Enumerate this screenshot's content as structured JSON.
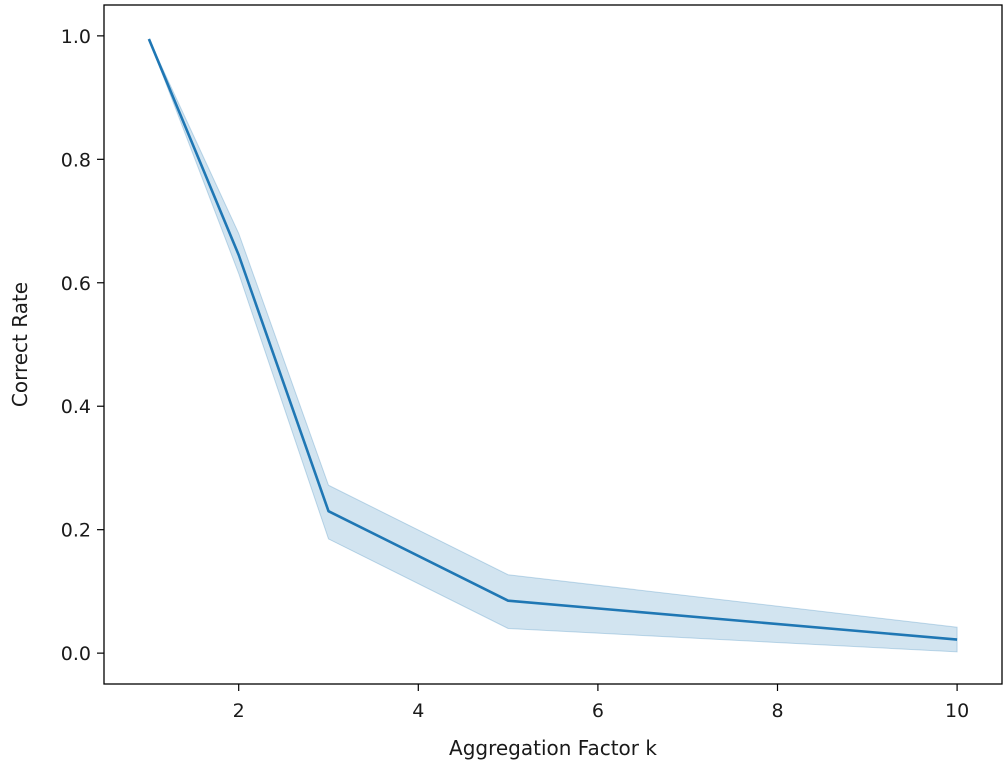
{
  "chart_data": {
    "type": "line",
    "title": "",
    "xlabel": "Aggregation Factor k",
    "ylabel": "Correct Rate",
    "xlim": [
      0.5,
      10.5
    ],
    "ylim": [
      -0.05,
      1.05
    ],
    "xticks": [
      2,
      4,
      6,
      8,
      10
    ],
    "yticks": [
      0.0,
      0.2,
      0.4,
      0.6,
      0.8,
      1.0
    ],
    "ytick_labels": [
      "0.0",
      "0.2",
      "0.4",
      "0.6",
      "0.8",
      "1.0"
    ],
    "grid": false,
    "legend": "none",
    "line_color": "#1f77b4",
    "band_color": "#1f77b4",
    "band_opacity": 0.2,
    "series": [
      {
        "x": [
          1,
          2,
          3,
          5,
          10
        ],
        "values": [
          0.995,
          0.645,
          0.23,
          0.085,
          0.022
        ],
        "lower": [
          0.995,
          0.615,
          0.185,
          0.04,
          0.002
        ],
        "upper": [
          0.995,
          0.68,
          0.272,
          0.127,
          0.042
        ]
      }
    ]
  }
}
